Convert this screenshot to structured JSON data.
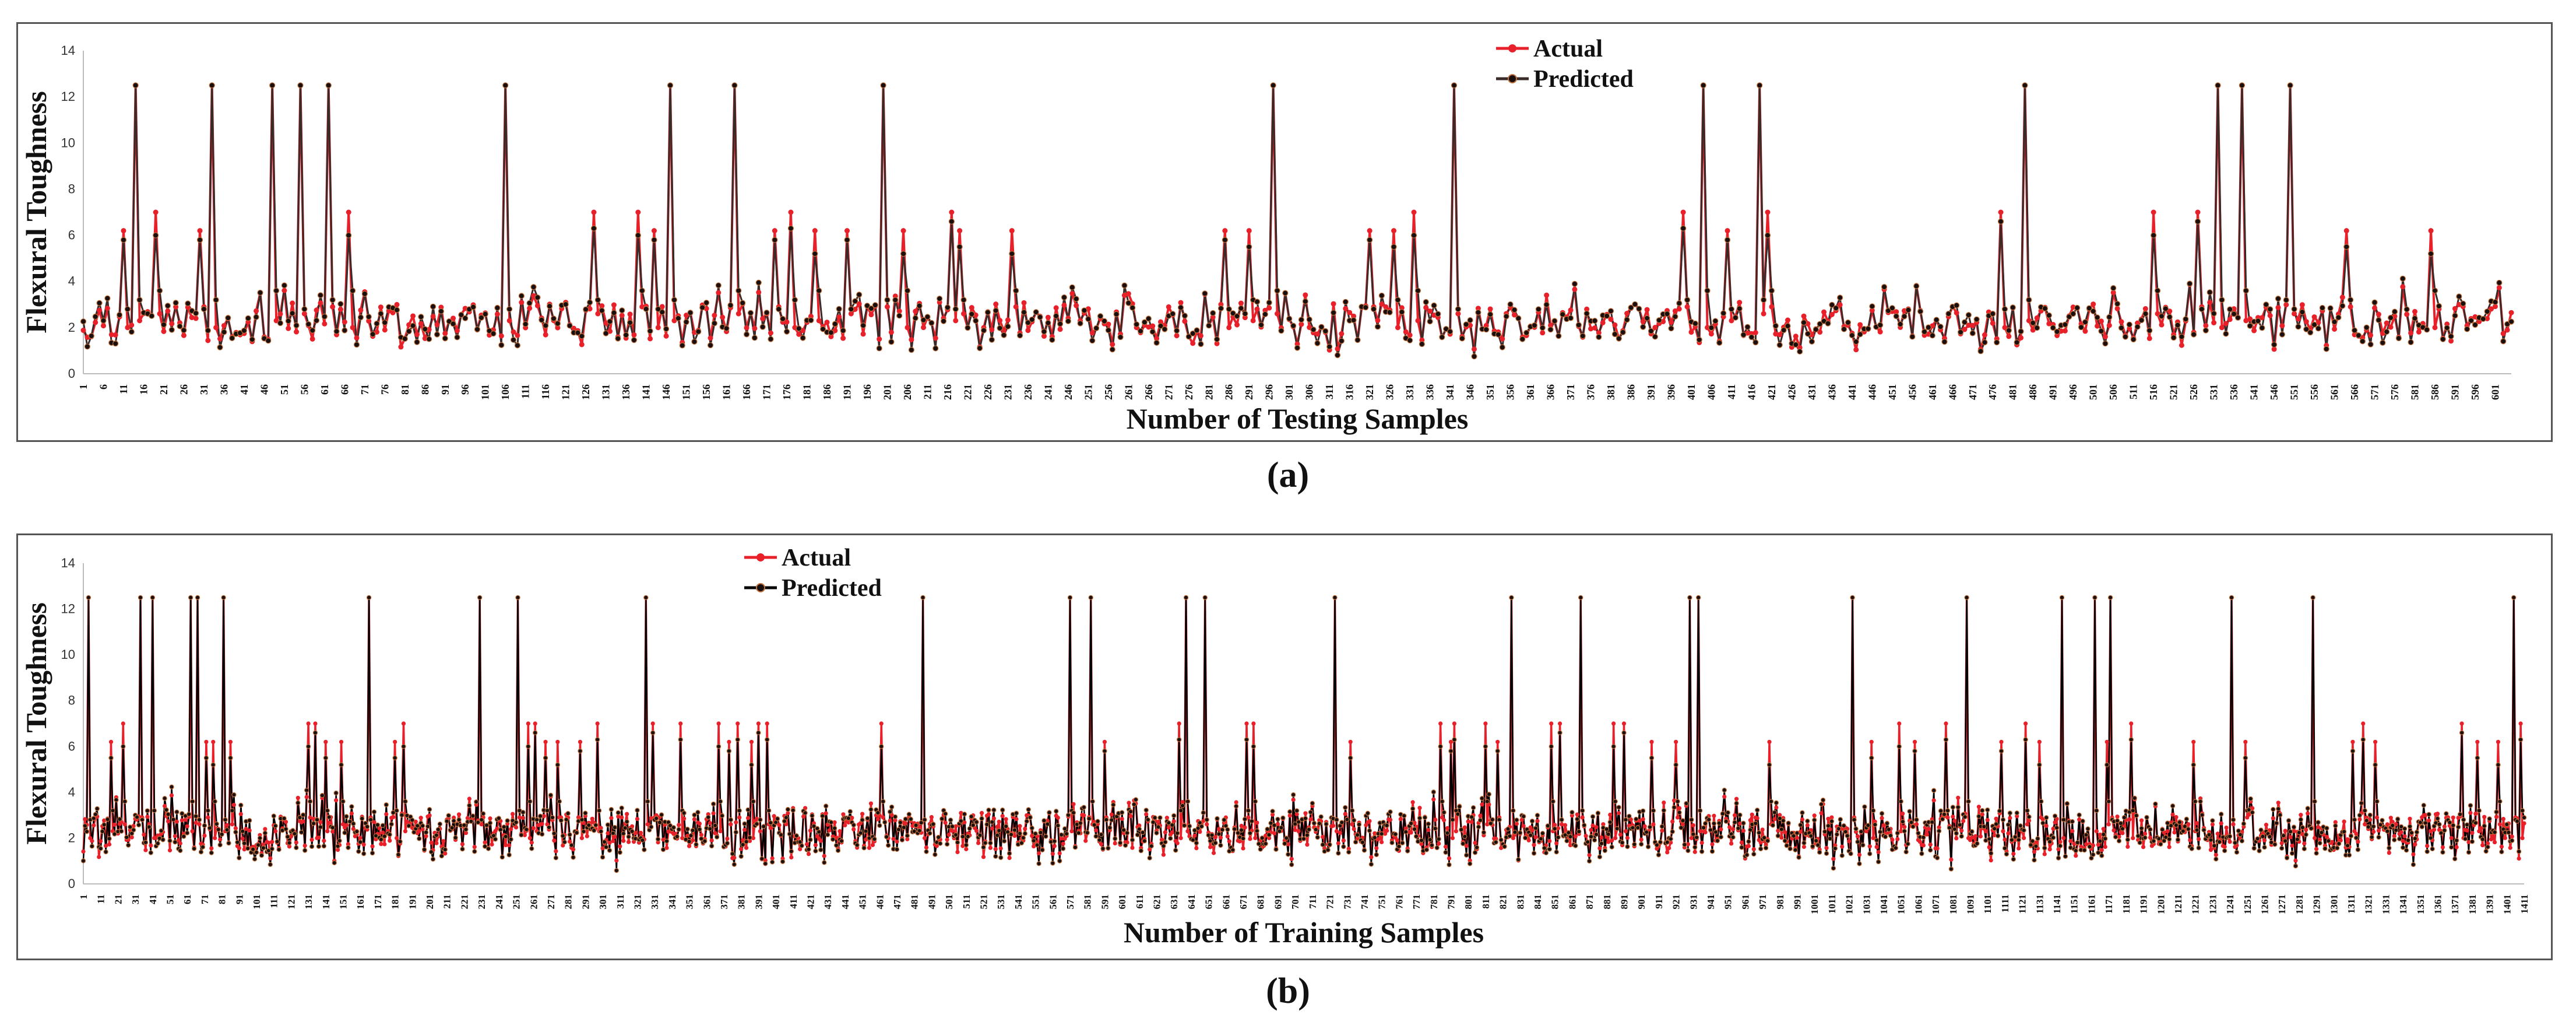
{
  "chart_data": [
    {
      "type": "line",
      "panel_label": "(a)",
      "ylabel": "Flexural Toughness",
      "xlabel": "Number of Testing Samples",
      "ylim": [
        0,
        14
      ],
      "yticks": [
        0,
        2,
        4,
        6,
        8,
        10,
        12,
        14
      ],
      "x_start": 1,
      "x_end": 605,
      "tick_step": 5,
      "legend": [
        "Actual",
        "Predicted"
      ],
      "legend_position": "top-center",
      "colors": {
        "actual": "#e8202a",
        "predicted": "#3a2a28",
        "marker": "#1a0f0f"
      },
      "n_points": 605,
      "peak_value": 12.5,
      "baseline_range": [
        1.0,
        3.5
      ],
      "peaks": [
        {
          "x": 11,
          "value": 6.2
        },
        {
          "x": 14,
          "value": 12.5
        },
        {
          "x": 19,
          "value": 7.0
        },
        {
          "x": 30,
          "value": 6.2
        },
        {
          "x": 33,
          "value": 12.5
        },
        {
          "x": 48,
          "value": 12.5
        },
        {
          "x": 55,
          "value": 12.5
        },
        {
          "x": 62,
          "value": 12.5
        },
        {
          "x": 67,
          "value": 7.0
        },
        {
          "x": 106,
          "value": 12.5
        },
        {
          "x": 128,
          "value": 7.0
        },
        {
          "x": 139,
          "value": 7.0
        },
        {
          "x": 143,
          "value": 6.2
        },
        {
          "x": 147,
          "value": 12.5
        },
        {
          "x": 163,
          "value": 12.5
        },
        {
          "x": 173,
          "value": 6.2
        },
        {
          "x": 177,
          "value": 7.0
        },
        {
          "x": 183,
          "value": 6.2
        },
        {
          "x": 191,
          "value": 6.2
        },
        {
          "x": 200,
          "value": 12.5
        },
        {
          "x": 205,
          "value": 6.2
        },
        {
          "x": 217,
          "value": 7.0
        },
        {
          "x": 219,
          "value": 6.2
        },
        {
          "x": 232,
          "value": 6.2
        },
        {
          "x": 285,
          "value": 6.2
        },
        {
          "x": 291,
          "value": 6.2
        },
        {
          "x": 297,
          "value": 12.5
        },
        {
          "x": 321,
          "value": 6.2
        },
        {
          "x": 327,
          "value": 6.2
        },
        {
          "x": 332,
          "value": 7.0
        },
        {
          "x": 342,
          "value": 12.5
        },
        {
          "x": 399,
          "value": 7.0
        },
        {
          "x": 404,
          "value": 12.5
        },
        {
          "x": 410,
          "value": 6.2
        },
        {
          "x": 418,
          "value": 12.5
        },
        {
          "x": 420,
          "value": 7.0
        },
        {
          "x": 478,
          "value": 7.0
        },
        {
          "x": 484,
          "value": 12.5
        },
        {
          "x": 516,
          "value": 7.0
        },
        {
          "x": 527,
          "value": 7.0
        },
        {
          "x": 532,
          "value": 12.5
        },
        {
          "x": 538,
          "value": 12.5
        },
        {
          "x": 550,
          "value": 12.5
        },
        {
          "x": 564,
          "value": 6.2
        },
        {
          "x": 585,
          "value": 6.2
        }
      ]
    },
    {
      "type": "line",
      "panel_label": "(b)",
      "ylabel": "Flexural Toughness",
      "xlabel": "Number of Training Samples",
      "ylim": [
        0,
        14
      ],
      "yticks": [
        0,
        2,
        4,
        6,
        8,
        10,
        12,
        14
      ],
      "x_start": 1,
      "x_end": 1411,
      "tick_step": 10,
      "legend": [
        "Actual",
        "Predicted"
      ],
      "legend_position": "top-left",
      "colors": {
        "actual": "#e8202a",
        "predicted": "#000000",
        "marker": "#1a0f0f"
      },
      "n_points": 1411,
      "peak_value": 12.5,
      "baseline_range": [
        1.0,
        3.5
      ],
      "peaks": [
        {
          "x": 4,
          "value": 12.5
        },
        {
          "x": 17,
          "value": 6.2
        },
        {
          "x": 24,
          "value": 7.0
        },
        {
          "x": 34,
          "value": 12.5
        },
        {
          "x": 41,
          "value": 12.5
        },
        {
          "x": 63,
          "value": 12.5
        },
        {
          "x": 67,
          "value": 12.5
        },
        {
          "x": 72,
          "value": 6.2
        },
        {
          "x": 76,
          "value": 6.2
        },
        {
          "x": 82,
          "value": 12.5
        },
        {
          "x": 86,
          "value": 6.2
        },
        {
          "x": 131,
          "value": 7.0
        },
        {
          "x": 135,
          "value": 7.0
        },
        {
          "x": 141,
          "value": 6.2
        },
        {
          "x": 150,
          "value": 6.2
        },
        {
          "x": 166,
          "value": 12.5
        },
        {
          "x": 181,
          "value": 6.2
        },
        {
          "x": 186,
          "value": 7.0
        },
        {
          "x": 230,
          "value": 12.5
        },
        {
          "x": 252,
          "value": 12.5
        },
        {
          "x": 258,
          "value": 7.0
        },
        {
          "x": 262,
          "value": 7.0
        },
        {
          "x": 268,
          "value": 6.2
        },
        {
          "x": 275,
          "value": 6.2
        },
        {
          "x": 288,
          "value": 6.2
        },
        {
          "x": 298,
          "value": 7.0
        },
        {
          "x": 326,
          "value": 12.5
        },
        {
          "x": 330,
          "value": 7.0
        },
        {
          "x": 346,
          "value": 7.0
        },
        {
          "x": 368,
          "value": 7.0
        },
        {
          "x": 374,
          "value": 6.2
        },
        {
          "x": 379,
          "value": 7.0
        },
        {
          "x": 387,
          "value": 6.2
        },
        {
          "x": 391,
          "value": 7.0
        },
        {
          "x": 396,
          "value": 7.0
        },
        {
          "x": 462,
          "value": 7.0
        },
        {
          "x": 486,
          "value": 12.5
        },
        {
          "x": 571,
          "value": 12.5
        },
        {
          "x": 583,
          "value": 12.5
        },
        {
          "x": 591,
          "value": 6.2
        },
        {
          "x": 634,
          "value": 7.0
        },
        {
          "x": 638,
          "value": 12.5
        },
        {
          "x": 649,
          "value": 12.5
        },
        {
          "x": 673,
          "value": 7.0
        },
        {
          "x": 677,
          "value": 7.0
        },
        {
          "x": 724,
          "value": 12.5
        },
        {
          "x": 733,
          "value": 6.2
        },
        {
          "x": 785,
          "value": 7.0
        },
        {
          "x": 791,
          "value": 6.2
        },
        {
          "x": 793,
          "value": 7.0
        },
        {
          "x": 811,
          "value": 7.0
        },
        {
          "x": 818,
          "value": 6.2
        },
        {
          "x": 826,
          "value": 12.5
        },
        {
          "x": 849,
          "value": 7.0
        },
        {
          "x": 854,
          "value": 7.0
        },
        {
          "x": 866,
          "value": 12.5
        },
        {
          "x": 885,
          "value": 7.0
        },
        {
          "x": 891,
          "value": 7.0
        },
        {
          "x": 907,
          "value": 6.2
        },
        {
          "x": 921,
          "value": 6.2
        },
        {
          "x": 929,
          "value": 12.5
        },
        {
          "x": 934,
          "value": 12.5
        },
        {
          "x": 975,
          "value": 6.2
        },
        {
          "x": 1023,
          "value": 12.5
        },
        {
          "x": 1034,
          "value": 6.2
        },
        {
          "x": 1050,
          "value": 7.0
        },
        {
          "x": 1059,
          "value": 6.2
        },
        {
          "x": 1077,
          "value": 7.0
        },
        {
          "x": 1089,
          "value": 12.5
        },
        {
          "x": 1109,
          "value": 6.2
        },
        {
          "x": 1123,
          "value": 7.0
        },
        {
          "x": 1131,
          "value": 6.2
        },
        {
          "x": 1144,
          "value": 12.5
        },
        {
          "x": 1163,
          "value": 12.5
        },
        {
          "x": 1170,
          "value": 6.2
        },
        {
          "x": 1172,
          "value": 12.5
        },
        {
          "x": 1184,
          "value": 7.0
        },
        {
          "x": 1220,
          "value": 6.2
        },
        {
          "x": 1242,
          "value": 12.5
        },
        {
          "x": 1250,
          "value": 6.2
        },
        {
          "x": 1289,
          "value": 12.5
        },
        {
          "x": 1312,
          "value": 6.2
        },
        {
          "x": 1318,
          "value": 7.0
        },
        {
          "x": 1325,
          "value": 6.2
        },
        {
          "x": 1375,
          "value": 7.0
        },
        {
          "x": 1384,
          "value": 6.2
        },
        {
          "x": 1396,
          "value": 6.2
        },
        {
          "x": 1405,
          "value": 12.5
        },
        {
          "x": 1409,
          "value": 7.0
        }
      ]
    }
  ]
}
